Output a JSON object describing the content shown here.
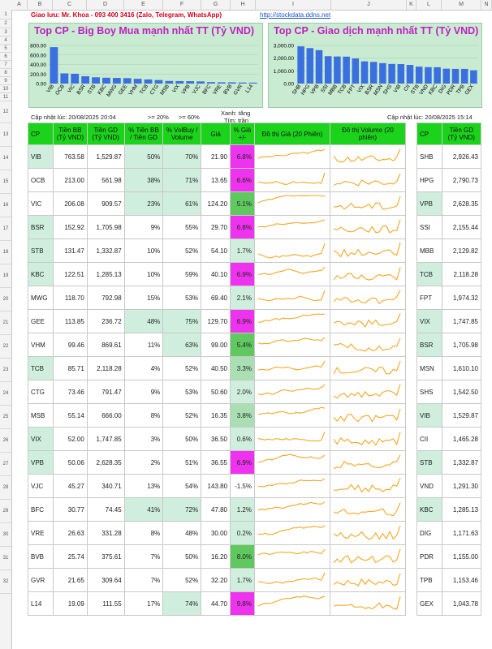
{
  "sheet": {
    "columns": [
      "A",
      "B",
      "C",
      "D",
      "E",
      "F",
      "G",
      "H",
      "I",
      "J",
      "K",
      "L",
      "M",
      "N"
    ],
    "rows": [
      "1",
      "2",
      "3",
      "4",
      "5",
      "6",
      "7",
      "8",
      "9",
      "10",
      "11",
      "12",
      "13",
      "14",
      "15",
      "16",
      "17",
      "18",
      "19",
      "20",
      "21",
      "22",
      "23",
      "24",
      "25",
      "26",
      "27",
      "28",
      "29",
      "30",
      "31",
      "32"
    ]
  },
  "header": {
    "contact": "Giao lưu: Mr. Khoa - 093 400 3416 (Zalo, Telegram, WhatsApp)",
    "link": "http://stockdata.ddns.net"
  },
  "legend": {
    "updated_left": "Cập nhật lúc: 20/08/2025 20:04",
    "ge20": ">= 20%",
    "ge60": ">= 60%",
    "green_up": "Xanh: tăng",
    "purple_ceiling": "Tím: trần",
    "updated_right": "Cập nhật lúc: 20/08/2025 15:14"
  },
  "chart_data": [
    {
      "type": "bar",
      "title": "Top CP - Big Boy Mua mạnh nhất TT (Tỷ VND)",
      "categories": [
        "VIB",
        "OCB",
        "VIC",
        "BSR",
        "STB",
        "KBC",
        "MWG",
        "GEE",
        "VHM",
        "TCB",
        "CTG",
        "MSB",
        "VIX",
        "VPB",
        "VJC",
        "BFC",
        "VRE",
        "BVB",
        "GVR",
        "L14"
      ],
      "values": [
        763.58,
        213.0,
        206.08,
        152.92,
        131.47,
        122.51,
        118.7,
        113.85,
        99.46,
        85.71,
        73.46,
        55.14,
        52.0,
        50.06,
        45.27,
        30.77,
        26.63,
        25.74,
        21.65,
        19.09
      ],
      "yticks": [
        "800.00",
        "600.00",
        "400.00",
        "200.00",
        "0.00"
      ],
      "ylim": [
        0,
        800
      ],
      "color": "#3a6fe0"
    },
    {
      "type": "bar",
      "title": "Top CP - Giao dịch mạnh nhất TT (Tỷ VND)",
      "categories": [
        "SHB",
        "HPG",
        "VPB",
        "SSI",
        "MBB",
        "TCB",
        "FPT",
        "VIX",
        "BSR",
        "MSN",
        "SHS",
        "VIB",
        "CII",
        "STB",
        "VND",
        "KBC",
        "DIG",
        "PDR",
        "TPB",
        "GEX"
      ],
      "values": [
        2926.43,
        2790.73,
        2628.35,
        2155.44,
        2129.82,
        2118.28,
        1974.32,
        1747.85,
        1705.98,
        1610.1,
        1542.5,
        1529.87,
        1465.28,
        1332.87,
        1291.3,
        1285.13,
        1171.63,
        1155.0,
        1153.46,
        1043.78
      ],
      "yticks": [
        "3,000.00",
        "2,000.00",
        "1,000.00",
        "0.00"
      ],
      "ylim": [
        0,
        3000
      ],
      "color": "#3a6fe0"
    }
  ],
  "table": {
    "headers": [
      "CP",
      "Tiền BB (Tỷ VND)",
      "Tiền GD (Tỷ VND)",
      "% Tiền BB / Tiền GD",
      "% VolBuy / Volume",
      "Giá",
      "% Giá +/-",
      "Đồ thị Giá (20 Phiên)",
      "Đồ thị Volume (20 phiên)"
    ],
    "rows": [
      {
        "cp": "VIB",
        "bb": "763.58",
        "gd": "1,529.87",
        "pct_bb": "50%",
        "pct_vol": "70%",
        "price": "21.90",
        "change": "6.8%",
        "cp_hl": true,
        "pct_bb_hl": true,
        "pct_vol_hl": true,
        "chg_color": "#ee33ee"
      },
      {
        "cp": "OCB",
        "bb": "213.00",
        "gd": "561.98",
        "pct_bb": "38%",
        "pct_vol": "71%",
        "price": "13.65",
        "change": "6.6%",
        "cp_hl": false,
        "pct_bb_hl": true,
        "pct_vol_hl": true,
        "chg_color": "#ee33ee"
      },
      {
        "cp": "VIC",
        "bb": "206.08",
        "gd": "909.57",
        "pct_bb": "23%",
        "pct_vol": "61%",
        "price": "124.20",
        "change": "5.1%",
        "cp_hl": false,
        "pct_bb_hl": true,
        "pct_vol_hl": true,
        "chg_color": "#5fc85f"
      },
      {
        "cp": "BSR",
        "bb": "152.92",
        "gd": "1,705.98",
        "pct_bb": "9%",
        "pct_vol": "55%",
        "price": "29.70",
        "change": "6.8%",
        "cp_hl": true,
        "pct_bb_hl": false,
        "pct_vol_hl": false,
        "chg_color": "#ee33ee"
      },
      {
        "cp": "STB",
        "bb": "131.47",
        "gd": "1,332.87",
        "pct_bb": "10%",
        "pct_vol": "52%",
        "price": "54.10",
        "change": "1.7%",
        "cp_hl": true,
        "pct_bb_hl": false,
        "pct_vol_hl": false,
        "chg_color": "#cfeedd"
      },
      {
        "cp": "KBC",
        "bb": "122.51",
        "gd": "1,285.13",
        "pct_bb": "10%",
        "pct_vol": "59%",
        "price": "40.10",
        "change": "6.9%",
        "cp_hl": true,
        "pct_bb_hl": false,
        "pct_vol_hl": false,
        "chg_color": "#ee33ee"
      },
      {
        "cp": "MWG",
        "bb": "118.70",
        "gd": "792.98",
        "pct_bb": "15%",
        "pct_vol": "53%",
        "price": "69.40",
        "change": "2.1%",
        "cp_hl": false,
        "pct_bb_hl": false,
        "pct_vol_hl": false,
        "chg_color": "#cfeedd"
      },
      {
        "cp": "GEE",
        "bb": "113.85",
        "gd": "236.72",
        "pct_bb": "48%",
        "pct_vol": "75%",
        "price": "129.70",
        "change": "6.9%",
        "cp_hl": false,
        "pct_bb_hl": true,
        "pct_vol_hl": true,
        "chg_color": "#ee33ee"
      },
      {
        "cp": "VHM",
        "bb": "99.46",
        "gd": "869.61",
        "pct_bb": "11%",
        "pct_vol": "63%",
        "price": "99.00",
        "change": "5.4%",
        "cp_hl": false,
        "pct_bb_hl": false,
        "pct_vol_hl": true,
        "chg_color": "#5fc85f"
      },
      {
        "cp": "TCB",
        "bb": "85.71",
        "gd": "2,118.28",
        "pct_bb": "4%",
        "pct_vol": "52%",
        "price": "40.50",
        "change": "3.3%",
        "cp_hl": true,
        "pct_bb_hl": false,
        "pct_vol_hl": false,
        "chg_color": "#a9dfb3"
      },
      {
        "cp": "CTG",
        "bb": "73.46",
        "gd": "791.47",
        "pct_bb": "9%",
        "pct_vol": "53%",
        "price": "50.60",
        "change": "2.0%",
        "cp_hl": false,
        "pct_bb_hl": false,
        "pct_vol_hl": false,
        "chg_color": "#cfeedd"
      },
      {
        "cp": "MSB",
        "bb": "55.14",
        "gd": "666.00",
        "pct_bb": "8%",
        "pct_vol": "52%",
        "price": "16.35",
        "change": "3.8%",
        "cp_hl": false,
        "pct_bb_hl": false,
        "pct_vol_hl": false,
        "chg_color": "#a9dfb3"
      },
      {
        "cp": "VIX",
        "bb": "52.00",
        "gd": "1,747.85",
        "pct_bb": "3%",
        "pct_vol": "50%",
        "price": "36.50",
        "change": "0.6%",
        "cp_hl": true,
        "pct_bb_hl": false,
        "pct_vol_hl": false,
        "chg_color": "#cfeedd"
      },
      {
        "cp": "VPB",
        "bb": "50.06",
        "gd": "2,628.35",
        "pct_bb": "2%",
        "pct_vol": "51%",
        "price": "36.55",
        "change": "6.9%",
        "cp_hl": true,
        "pct_bb_hl": false,
        "pct_vol_hl": false,
        "chg_color": "#ee33ee"
      },
      {
        "cp": "VJC",
        "bb": "45.27",
        "gd": "340.71",
        "pct_bb": "13%",
        "pct_vol": "54%",
        "price": "143.80",
        "change": "-1.5%",
        "cp_hl": false,
        "pct_bb_hl": false,
        "pct_vol_hl": false,
        "chg_color": "#ffffff"
      },
      {
        "cp": "BFC",
        "bb": "30.77",
        "gd": "74.45",
        "pct_bb": "41%",
        "pct_vol": "72%",
        "price": "47.80",
        "change": "1.2%",
        "cp_hl": false,
        "pct_bb_hl": true,
        "pct_vol_hl": true,
        "chg_color": "#cfeedd"
      },
      {
        "cp": "VRE",
        "bb": "26.63",
        "gd": "331.28",
        "pct_bb": "8%",
        "pct_vol": "48%",
        "price": "30.00",
        "change": "0.2%",
        "cp_hl": false,
        "pct_bb_hl": false,
        "pct_vol_hl": false,
        "chg_color": "#cfeedd"
      },
      {
        "cp": "BVB",
        "bb": "25.74",
        "gd": "375.61",
        "pct_bb": "7%",
        "pct_vol": "50%",
        "price": "16.20",
        "change": "8.0%",
        "cp_hl": false,
        "pct_bb_hl": false,
        "pct_vol_hl": false,
        "chg_color": "#5fc85f"
      },
      {
        "cp": "GVR",
        "bb": "21.65",
        "gd": "309.64",
        "pct_bb": "7%",
        "pct_vol": "52%",
        "price": "32.20",
        "change": "1.7%",
        "cp_hl": false,
        "pct_bb_hl": false,
        "pct_vol_hl": false,
        "chg_color": "#cfeedd"
      },
      {
        "cp": "L14",
        "bb": "19.09",
        "gd": "111.55",
        "pct_bb": "17%",
        "pct_vol": "74%",
        "price": "44.70",
        "change": "9.8%",
        "cp_hl": false,
        "pct_bb_hl": false,
        "pct_vol_hl": true,
        "chg_color": "#ee33ee"
      }
    ]
  },
  "right_table": {
    "headers": [
      "CP",
      "Tiền GD (Tỷ VND)"
    ],
    "rows": [
      {
        "cp": "SHB",
        "gd": "2,926.43",
        "hl": false
      },
      {
        "cp": "HPG",
        "gd": "2,790.73",
        "hl": false
      },
      {
        "cp": "VPB",
        "gd": "2,628.35",
        "hl": true
      },
      {
        "cp": "SSI",
        "gd": "2,155.44",
        "hl": false
      },
      {
        "cp": "MBB",
        "gd": "2,129.82",
        "hl": false
      },
      {
        "cp": "TCB",
        "gd": "2,118.28",
        "hl": true
      },
      {
        "cp": "FPT",
        "gd": "1,974.32",
        "hl": false
      },
      {
        "cp": "VIX",
        "gd": "1,747.85",
        "hl": true
      },
      {
        "cp": "BSR",
        "gd": "1,705.98",
        "hl": true
      },
      {
        "cp": "MSN",
        "gd": "1,610.10",
        "hl": false
      },
      {
        "cp": "SHS",
        "gd": "1,542.50",
        "hl": false
      },
      {
        "cp": "VIB",
        "gd": "1,529.87",
        "hl": true
      },
      {
        "cp": "CII",
        "gd": "1,465.28",
        "hl": false
      },
      {
        "cp": "STB",
        "gd": "1,332.87",
        "hl": true
      },
      {
        "cp": "VND",
        "gd": "1,291.30",
        "hl": false
      },
      {
        "cp": "KBC",
        "gd": "1,285.13",
        "hl": true
      },
      {
        "cp": "DIG",
        "gd": "1,171.63",
        "hl": false
      },
      {
        "cp": "PDR",
        "gd": "1,155.00",
        "hl": false
      },
      {
        "cp": "TPB",
        "gd": "1,153.46",
        "hl": false
      },
      {
        "cp": "GEX",
        "gd": "1,043.78",
        "hl": false
      }
    ]
  },
  "colors": {
    "header_green": "#1cd31c",
    "highlight": "#cfeedd",
    "ceiling_purple": "#ee33ee",
    "spark_orange": "#f5a623",
    "bar_blue": "#3a6fe0",
    "title_red": "#d0021b",
    "title_magenta": "#c020c0"
  }
}
